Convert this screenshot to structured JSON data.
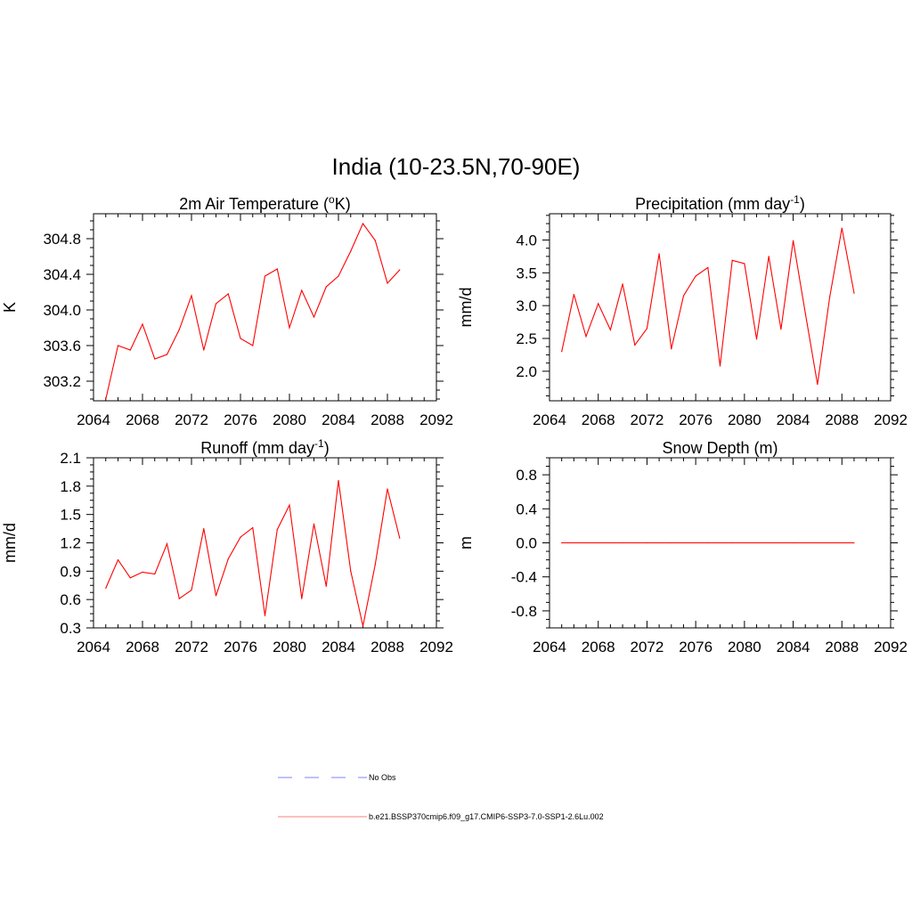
{
  "figure": {
    "title": "India (10-23.5N,70-90E)"
  },
  "colors": {
    "series": "#ff0000",
    "obs": "#9999ff",
    "axis": "#000000"
  },
  "legend": {
    "obs_label": "No Obs",
    "model_label": "b.e21.BSSP370cmip6.f09_g17.CMIP6-SSP3-7.0-SSP1-2.6Lu.002"
  },
  "chart_data": [
    {
      "id": "t2m",
      "type": "line",
      "title": "2m Air Temperature (",
      "title_sup": "o",
      "title_tail": "K)",
      "ylabel": "K",
      "xlim": [
        2064,
        2092
      ],
      "ylim": [
        302.98,
        305.08
      ],
      "xticks": [
        2064,
        2068,
        2072,
        2076,
        2080,
        2084,
        2088,
        2092
      ],
      "yticks": [
        303.2,
        303.6,
        304.0,
        304.4,
        304.8
      ],
      "ytick_labels": [
        "303.2",
        "303.6",
        "304.0",
        "304.4",
        "304.8"
      ],
      "series": [
        {
          "x": [
            2065,
            2066,
            2067,
            2068,
            2069,
            2070,
            2071,
            2072,
            2073,
            2074,
            2075,
            2076,
            2077,
            2078,
            2079,
            2080,
            2081,
            2082,
            2083,
            2084,
            2085,
            2086,
            2087,
            2088,
            2089
          ],
          "values": [
            303.0,
            303.6,
            303.55,
            303.84,
            303.45,
            303.5,
            303.78,
            304.16,
            303.55,
            304.07,
            304.18,
            303.68,
            303.6,
            304.38,
            304.46,
            303.8,
            304.22,
            303.92,
            304.26,
            304.38,
            304.66,
            304.97,
            304.78,
            304.3,
            304.45
          ]
        }
      ]
    },
    {
      "id": "precip",
      "type": "line",
      "title": "Precipitation (mm day",
      "title_sup": "-1",
      "title_tail": ")",
      "ylabel": "mm/d",
      "xlim": [
        2064,
        2092
      ],
      "ylim": [
        1.55,
        4.4
      ],
      "xticks": [
        2064,
        2068,
        2072,
        2076,
        2080,
        2084,
        2088,
        2092
      ],
      "yticks": [
        2.0,
        2.5,
        3.0,
        3.5,
        4.0
      ],
      "ytick_labels": [
        "2.0",
        "2.5",
        "3.0",
        "3.5",
        "4.0"
      ],
      "series": [
        {
          "x": [
            2065,
            2066,
            2067,
            2068,
            2069,
            2070,
            2071,
            2072,
            2073,
            2074,
            2075,
            2076,
            2077,
            2078,
            2079,
            2080,
            2081,
            2082,
            2083,
            2084,
            2085,
            2086,
            2087,
            2088,
            2089
          ],
          "values": [
            2.3,
            3.17,
            2.53,
            3.03,
            2.63,
            3.33,
            2.4,
            2.65,
            3.79,
            2.34,
            3.15,
            3.45,
            3.58,
            2.08,
            3.69,
            3.64,
            2.49,
            3.75,
            2.64,
            3.99,
            2.88,
            1.8,
            3.13,
            4.18,
            3.19
          ]
        }
      ]
    },
    {
      "id": "runoff",
      "type": "line",
      "title": "Runoff (mm day",
      "title_sup": "-1",
      "title_tail": ")",
      "ylabel": "mm/d",
      "xlim": [
        2064,
        2092
      ],
      "ylim": [
        0.3,
        2.1
      ],
      "xticks": [
        2064,
        2068,
        2072,
        2076,
        2080,
        2084,
        2088,
        2092
      ],
      "yticks": [
        0.3,
        0.6,
        0.9,
        1.2,
        1.5,
        1.8,
        2.1
      ],
      "ytick_labels": [
        "0.3",
        "0.6",
        "0.9",
        "1.2",
        "1.5",
        "1.8",
        "2.1"
      ],
      "series": [
        {
          "x": [
            2065,
            2066,
            2067,
            2068,
            2069,
            2070,
            2071,
            2072,
            2073,
            2074,
            2075,
            2076,
            2077,
            2078,
            2079,
            2080,
            2081,
            2082,
            2083,
            2084,
            2085,
            2086,
            2087,
            2088,
            2089
          ],
          "values": [
            0.72,
            1.02,
            0.83,
            0.89,
            0.87,
            1.19,
            0.61,
            0.7,
            1.35,
            0.64,
            1.03,
            1.26,
            1.36,
            0.43,
            1.34,
            1.6,
            0.61,
            1.4,
            0.74,
            1.86,
            0.9,
            0.32,
            0.97,
            1.77,
            1.25
          ]
        }
      ]
    },
    {
      "id": "snow",
      "type": "line",
      "title": "Snow Depth (m)",
      "title_sup": "",
      "title_tail": "",
      "ylabel": "m",
      "xlim": [
        2064,
        2092
      ],
      "ylim": [
        -1.0,
        1.0
      ],
      "xticks": [
        2064,
        2068,
        2072,
        2076,
        2080,
        2084,
        2088,
        2092
      ],
      "yticks": [
        -0.8,
        -0.4,
        0.0,
        0.4,
        0.8
      ],
      "ytick_labels": [
        "-0.8",
        "-0.4",
        "0.0",
        "0.4",
        "0.8"
      ],
      "series": [
        {
          "x": [
            2065,
            2066,
            2067,
            2068,
            2069,
            2070,
            2071,
            2072,
            2073,
            2074,
            2075,
            2076,
            2077,
            2078,
            2079,
            2080,
            2081,
            2082,
            2083,
            2084,
            2085,
            2086,
            2087,
            2088,
            2089
          ],
          "values": [
            0,
            0,
            0,
            0,
            0,
            0,
            0,
            0,
            0,
            0,
            0,
            0,
            0,
            0,
            0,
            0,
            0,
            0,
            0,
            0,
            0,
            0,
            0,
            0,
            0
          ]
        }
      ]
    }
  ]
}
